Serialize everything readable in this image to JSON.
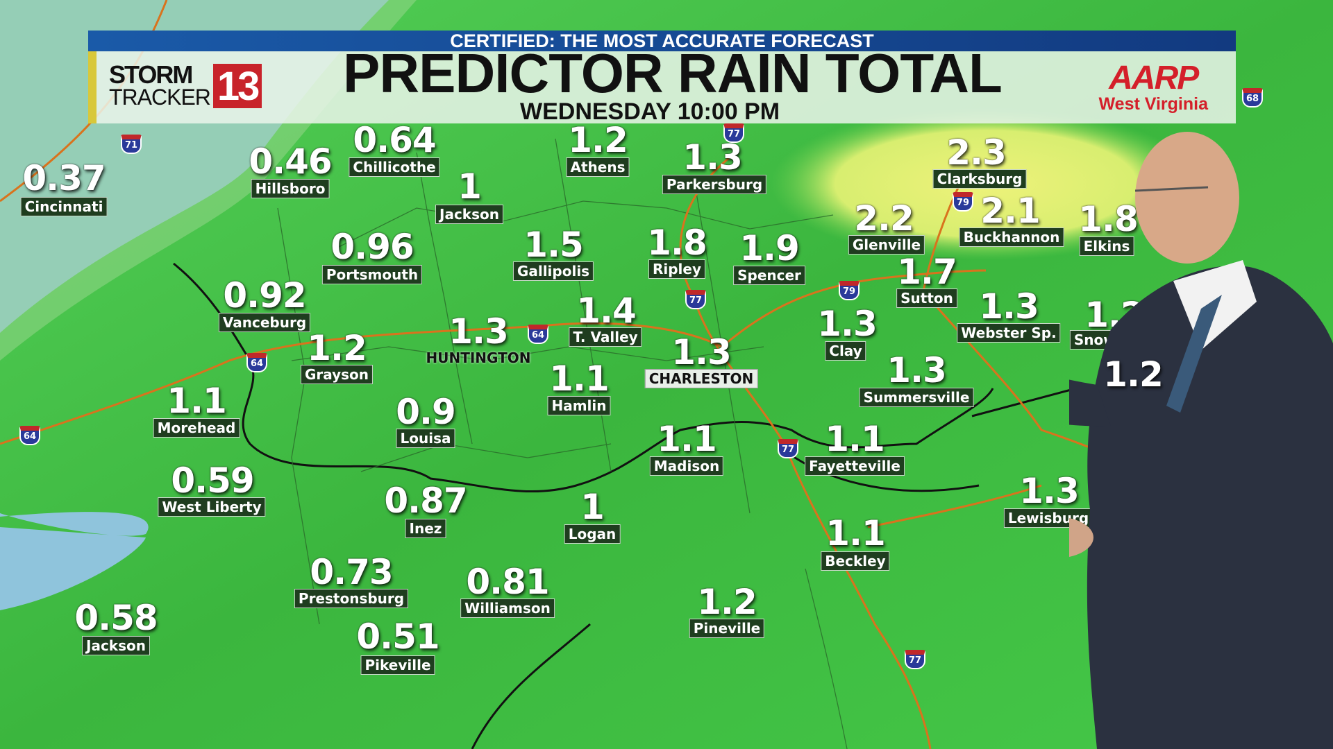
{
  "banner": {
    "tagline": "CERTIFIED: THE MOST ACCURATE FORECAST",
    "title": "PREDICTOR RAIN TOTAL",
    "subtitle": "WEDNESDAY 10:00 PM",
    "logo": {
      "storm": "STORM",
      "tracker": "TRACKER",
      "channel": "13"
    },
    "sponsor": {
      "name": "AARP",
      "region": "West Virginia"
    }
  },
  "colors": {
    "banner_blue": "#1a5aa8",
    "map_green": "#3fbf3f",
    "water_blue": "#8fc4dc",
    "heavy_rain_yellow": "#e8f07a",
    "sponsor_red": "#d41f2a",
    "channel_red": "#c8232a"
  },
  "locations": [
    {
      "name": "Cincinnati",
      "value": "0.37"
    },
    {
      "name": "Hillsboro",
      "value": "0.46"
    },
    {
      "name": "Chillicothe",
      "value": "0.64"
    },
    {
      "name": "Athens",
      "value": "1.2"
    },
    {
      "name": "Parkersburg",
      "value": "1.3"
    },
    {
      "name": "Jackson",
      "value": "1"
    },
    {
      "name": "Clarksburg",
      "value": "2.3"
    },
    {
      "name": "Glenville",
      "value": "2.2"
    },
    {
      "name": "Buckhannon",
      "value": "2.1"
    },
    {
      "name": "Elkins",
      "value": "1.8"
    },
    {
      "name": "Portsmouth",
      "value": "0.96"
    },
    {
      "name": "Gallipolis",
      "value": "1.5"
    },
    {
      "name": "Ripley",
      "value": "1.8"
    },
    {
      "name": "Spencer",
      "value": "1.9"
    },
    {
      "name": "Sutton",
      "value": "1.7"
    },
    {
      "name": "Vanceburg",
      "value": "0.92"
    },
    {
      "name": "T. Valley",
      "value": "1.4"
    },
    {
      "name": "HUNTINGTON",
      "value": "1.3"
    },
    {
      "name": "Clay",
      "value": "1.3"
    },
    {
      "name": "Webster Sp.",
      "value": "1.3"
    },
    {
      "name": "Snowshoe",
      "value": "1.2"
    },
    {
      "name": "Grayson",
      "value": "1.2"
    },
    {
      "name": "CHARLESTON",
      "value": "1.3"
    },
    {
      "name": "Hamlin",
      "value": "1.1"
    },
    {
      "name": "Summersville",
      "value": "1.3"
    },
    {
      "name": "Morehead",
      "value": "1.1"
    },
    {
      "name": "Louisa",
      "value": "0.9"
    },
    {
      "name": "Madison",
      "value": "1.1"
    },
    {
      "name": "Fayetteville",
      "value": "1.1"
    },
    {
      "name": "West Liberty",
      "value": "0.59"
    },
    {
      "name": "Inez",
      "value": "0.87"
    },
    {
      "name": "Logan",
      "value": "1"
    },
    {
      "name": "Lewisburg",
      "value": "1.3"
    },
    {
      "name": "Beckley",
      "value": "1.1"
    },
    {
      "name": "Prestonsburg",
      "value": "0.73"
    },
    {
      "name": "Williamson",
      "value": "0.81"
    },
    {
      "name": "Pineville",
      "value": "1.2"
    },
    {
      "name": "Jackson",
      "value": "0.58"
    },
    {
      "name": "Pikeville",
      "value": "0.51"
    }
  ],
  "partial_value": "1.2",
  "interstates": [
    "71",
    "77",
    "79",
    "68",
    "64",
    "64",
    "64",
    "77",
    "79",
    "77",
    "77"
  ]
}
